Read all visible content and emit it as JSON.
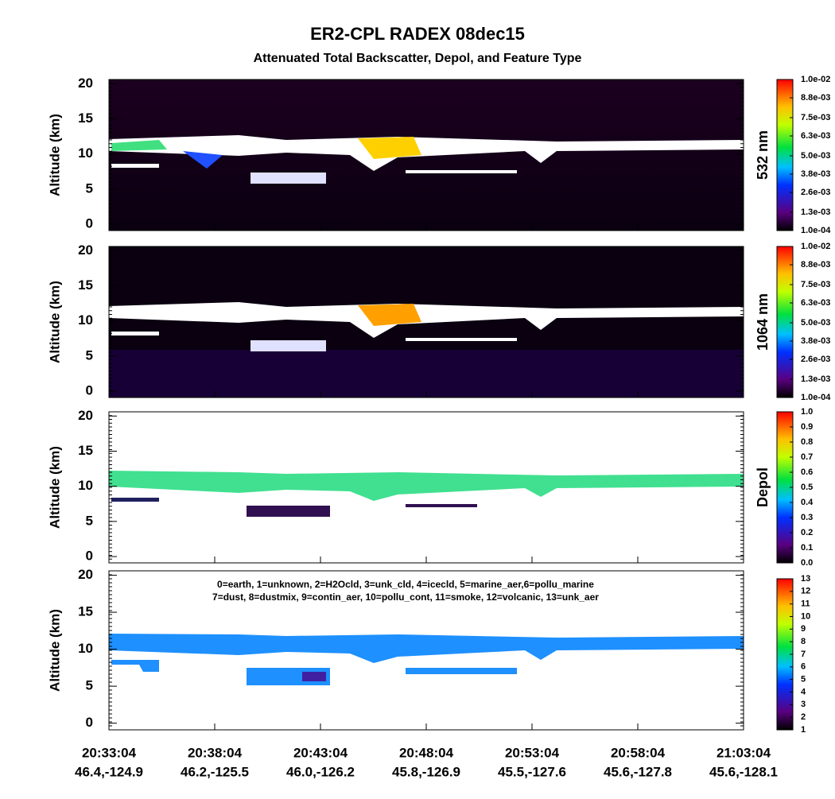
{
  "chart_data": {
    "type": "curtain",
    "title": "ER2-CPL RADEX 08dec15",
    "subtitle": "Attenuated Total Backscatter, Depol, and Feature Type",
    "x_tick_labels": [
      {
        "time": "20:33:04",
        "location": "46.4,-124.9"
      },
      {
        "time": "20:38:04",
        "location": "46.2,-125.5"
      },
      {
        "time": "20:43:04",
        "location": "46.0,-126.2"
      },
      {
        "time": "20:48:04",
        "location": "45.8,-126.9"
      },
      {
        "time": "20:53:04",
        "location": "45.5,-127.6"
      },
      {
        "time": "20:58:04",
        "location": "45.6,-127.8"
      },
      {
        "time": "21:03:04",
        "location": "45.6,-128.1"
      }
    ],
    "panels": [
      {
        "ylabel": "Altitude (km)",
        "side_label": "532 nm",
        "ylim": [
          -0.9,
          20.6
        ],
        "yticks": [
          0,
          5,
          10,
          15,
          20
        ],
        "colorbar": {
          "lim": [
            0.0001,
            0.01
          ],
          "ticks": [
            {
              "value": 0.0001,
              "label": "1.0e-04"
            },
            {
              "value": 0.0013,
              "label": "1.3e-03"
            },
            {
              "value": 0.0026,
              "label": "2.6e-03"
            },
            {
              "value": 0.0038,
              "label": "3.8e-03"
            },
            {
              "value": 0.005,
              "label": "5.0e-03"
            },
            {
              "value": 0.0063,
              "label": "6.3e-03"
            },
            {
              "value": 0.0075,
              "label": "7.5e-03"
            },
            {
              "value": 0.0088,
              "label": "8.8e-03"
            },
            {
              "value": 0.01,
              "label": "1.0e-02"
            }
          ]
        }
      },
      {
        "ylabel": "Altitude (km)",
        "side_label": "1064 nm",
        "ylim": [
          -0.9,
          20.6
        ],
        "yticks": [
          0,
          5,
          10,
          15,
          20
        ],
        "colorbar": {
          "lim": [
            0.0001,
            0.01
          ],
          "ticks": [
            {
              "value": 0.0001,
              "label": "1.0e-04"
            },
            {
              "value": 0.0013,
              "label": "1.3e-03"
            },
            {
              "value": 0.0026,
              "label": "2.6e-03"
            },
            {
              "value": 0.0038,
              "label": "3.8e-03"
            },
            {
              "value": 0.005,
              "label": "5.0e-03"
            },
            {
              "value": 0.0063,
              "label": "6.3e-03"
            },
            {
              "value": 0.0075,
              "label": "7.5e-03"
            },
            {
              "value": 0.0088,
              "label": "8.8e-03"
            },
            {
              "value": 0.01,
              "label": "1.0e-02"
            }
          ]
        }
      },
      {
        "ylabel": "Altitude (km)",
        "side_label": "Depol",
        "ylim": [
          -0.9,
          20.6
        ],
        "yticks": [
          0,
          5,
          10,
          15,
          20
        ],
        "colorbar": {
          "lim": [
            0,
            1
          ],
          "ticks": [
            {
              "value": 0,
              "label": "0.0"
            },
            0.1,
            0.2,
            0.3,
            0.4,
            0.5,
            0.6,
            0.7,
            0.8,
            0.9,
            {
              "value": 1,
              "label": "1.0"
            }
          ]
        }
      },
      {
        "ylabel": "Altitude (km)",
        "ylim": [
          -0.9,
          20.6
        ],
        "yticks": [
          0,
          5,
          10,
          15,
          20
        ],
        "legend_lines": [
          "0=earth, 1=unknown, 2=H2Ocld, 3=unk_cld, 4=icecld, 5=marine_aer,6=pollu_marine",
          "7=dust, 8=dustmix, 9=contin_aer, 10=pollu_cont, 11=smoke, 12=volcanic, 13=unk_aer"
        ],
        "colorbar": {
          "lim": [
            1,
            13
          ],
          "ticks": [
            1,
            2,
            3,
            4,
            5,
            6,
            7,
            8,
            9,
            10,
            11,
            12,
            13
          ]
        }
      }
    ]
  }
}
